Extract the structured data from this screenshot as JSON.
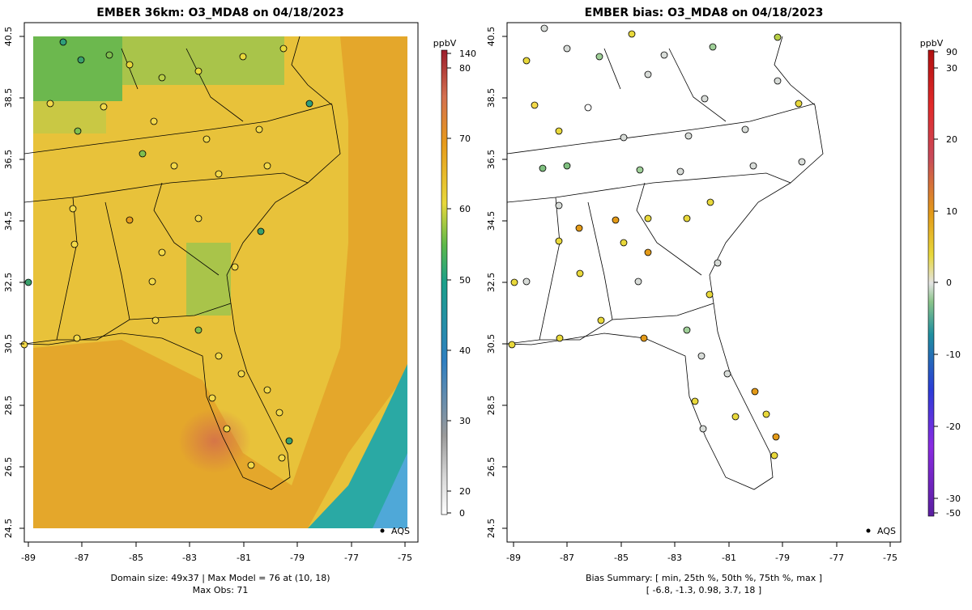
{
  "left_panel": {
    "title": "EMBER 36km: O3_MDA8 on 04/18/2023",
    "footer_line1": "Domain size: 49x37 | Max Model = 76 at (10, 18)",
    "footer_line2": "Max Obs: 71",
    "legend_marker_label": "AQS",
    "colorbar": {
      "unit": "ppbV",
      "tick_labels": [
        "140",
        "80",
        "70",
        "60",
        "50",
        "40",
        "30",
        "20",
        "0"
      ]
    }
  },
  "right_panel": {
    "title": "EMBER bias: O3_MDA8 on 04/18/2023",
    "footer_line1": "Bias Summary: [ min, 25th %, 50th %, 75th %, max ]",
    "footer_line2": "[ -6.8,   -1.3,   0.98,   3.7,   18 ]",
    "legend_marker_label": "AQS",
    "colorbar": {
      "unit": "ppbV",
      "tick_labels": [
        "90",
        "30",
        "20",
        "10",
        "0",
        "-10",
        "-20",
        "-30",
        "-50"
      ]
    }
  },
  "axes": {
    "x_tick_labels": [
      "-89",
      "-87",
      "-85",
      "-83",
      "-81",
      "-79",
      "-77",
      "-75"
    ],
    "y_tick_labels": [
      "40.5",
      "38.5",
      "36.5",
      "34.5",
      "32.5",
      "30.5",
      "28.5",
      "26.5",
      "24.5"
    ]
  },
  "colors": {
    "model_field_dominant": "#e8c23a",
    "ocean_low": "#2aa9a4",
    "site_marker_high": "#f3d94a",
    "site_marker_low": "#3aa06c",
    "bias_near_zero": "#d8dcd8"
  },
  "chart_data": [
    {
      "type": "heatmap",
      "title": "EMBER 36km: O3_MDA8 on 04/18/2023",
      "x_range": [
        -89,
        -75
      ],
      "y_range": [
        24.5,
        40.5
      ],
      "colorbar_unit": "ppbV",
      "colorbar_ticks": [
        0,
        20,
        30,
        40,
        50,
        60,
        70,
        80,
        140
      ],
      "max_model": 76,
      "max_obs": 71,
      "domain_size": "49x37",
      "overlay": "AQS"
    },
    {
      "type": "scatter",
      "title": "EMBER bias: O3_MDA8 on 04/18/2023",
      "x_range": [
        -89,
        -75
      ],
      "y_range": [
        24.5,
        40.5
      ],
      "colorbar_unit": "ppbV",
      "colorbar_ticks": [
        -50,
        -30,
        -20,
        -10,
        0,
        10,
        20,
        30,
        90
      ],
      "bias_summary": {
        "min": -6.8,
        "p25": -1.3,
        "p50": 0.98,
        "p75": 3.7,
        "max": 18
      },
      "overlay": "AQS"
    }
  ]
}
